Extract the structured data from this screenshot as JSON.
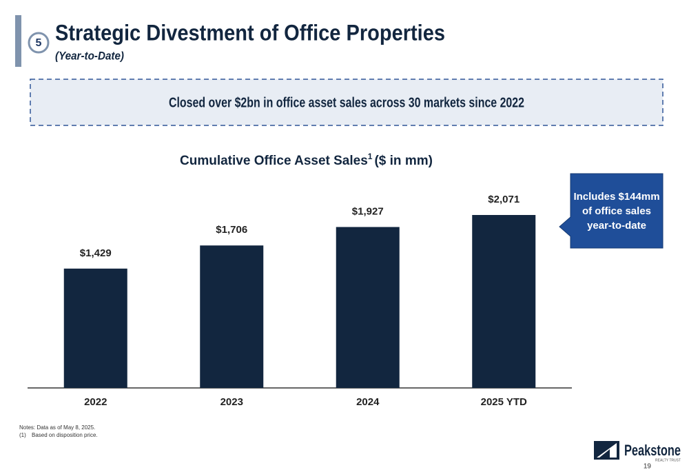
{
  "header": {
    "number": "5",
    "title": "Strategic Divestment of Office Properties",
    "subtitle": "(Year-to-Date)"
  },
  "banner": "Closed over $2bn in office asset sales across 30 markets since 2022",
  "chart_data": {
    "type": "bar",
    "title": "Cumulative Office Asset Sales",
    "title_superscript": "1",
    "title_suffix": "($ in mm)",
    "categories": [
      "2022",
      "2023",
      "2024",
      "2025 YTD"
    ],
    "values": [
      1429,
      1706,
      1927,
      2071
    ],
    "value_labels": [
      "$1,429",
      "$1,706",
      "$1,927",
      "$2,071"
    ],
    "color": "#12263f"
  },
  "callout": [
    "Includes $144mm",
    "of office sales",
    "year-to-date"
  ],
  "notes": {
    "line1": "Notes: Data as of May 8, 2025.",
    "footnote_marker": "(1)",
    "footnote_text": "Based on disposition price."
  },
  "footer": {
    "logo": "Peakstone",
    "logo_sub": "REALTY TRUST",
    "page": "19"
  }
}
